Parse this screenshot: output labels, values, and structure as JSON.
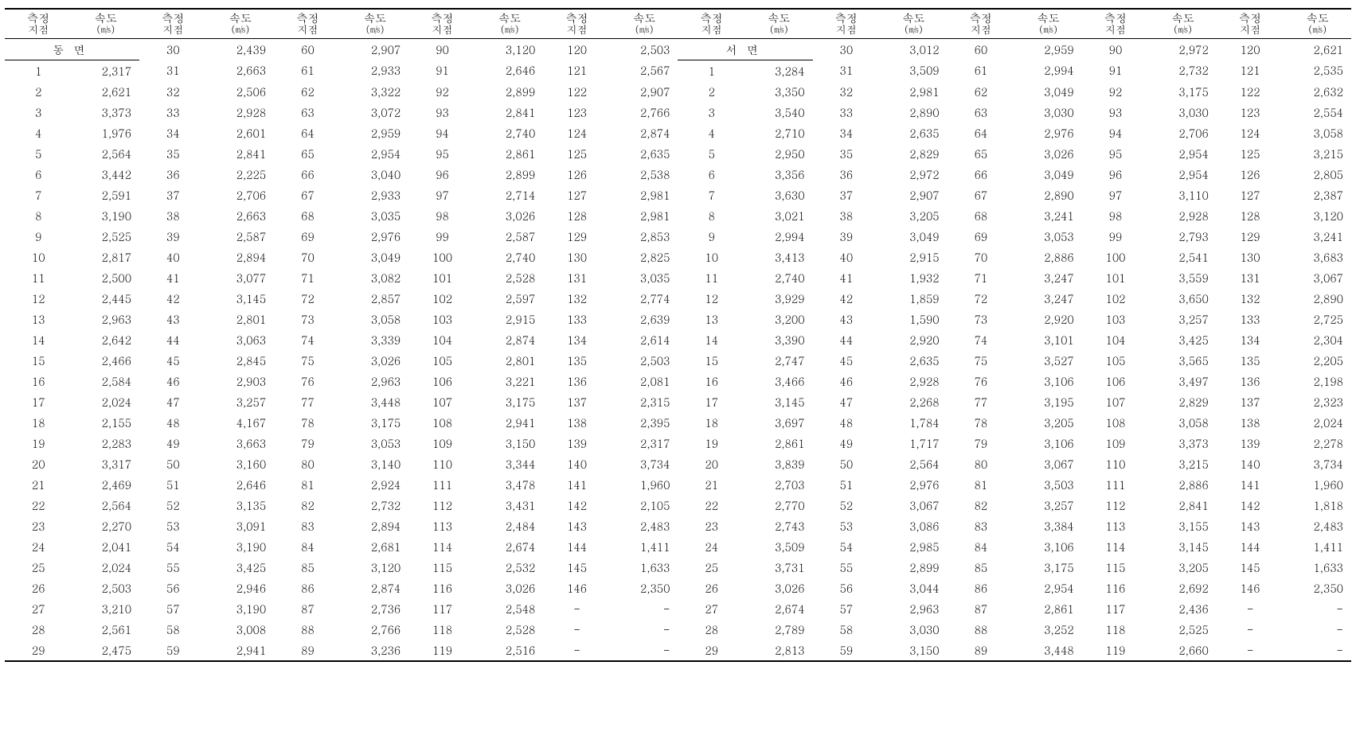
{
  "header": {
    "point_label": "측정\n지점",
    "speed_label": "속도",
    "speed_unit": "(㎧)"
  },
  "sections": {
    "east": {
      "label": "동    면"
    },
    "west": {
      "label": "서    면"
    }
  },
  "colors": {
    "rule": "#000000",
    "bg": "#ffffff",
    "text": "#000000"
  },
  "typography": {
    "font_family": "Batang / serif",
    "body_fontsize_pt": 11,
    "header_fontsize_pt": 11
  },
  "dash": "-",
  "east": {
    "c1": {
      "pts": [
        1,
        2,
        3,
        4,
        5,
        6,
        7,
        8,
        9,
        10,
        11,
        12,
        13,
        14,
        15,
        16,
        17,
        18,
        19,
        20,
        21,
        22,
        23,
        24,
        25,
        26,
        27,
        28,
        29
      ],
      "vals": [
        "2,317",
        "2,621",
        "3,373",
        "1,976",
        "2,564",
        "3,442",
        "2,591",
        "3,190",
        "2,525",
        "2,817",
        "2,500",
        "2,445",
        "2,963",
        "2,642",
        "2,466",
        "2,584",
        "2,024",
        "2,155",
        "2,283",
        "3,317",
        "2,469",
        "2,564",
        "2,270",
        "2,041",
        "2,024",
        "2,503",
        "3,210",
        "2,561",
        "2,475"
      ]
    },
    "c2": {
      "pts": [
        30,
        31,
        32,
        33,
        34,
        35,
        36,
        37,
        38,
        39,
        40,
        41,
        42,
        43,
        44,
        45,
        46,
        47,
        48,
        49,
        50,
        51,
        52,
        53,
        54,
        55,
        56,
        57,
        58,
        59
      ],
      "vals": [
        "2,439",
        "2,663",
        "2,506",
        "2,928",
        "2,601",
        "2,841",
        "2,225",
        "2,706",
        "2,663",
        "2,587",
        "2,894",
        "3,077",
        "3,145",
        "2,801",
        "3,063",
        "2,845",
        "2,903",
        "3,257",
        "4,167",
        "3,663",
        "3,160",
        "2,646",
        "3,135",
        "3,091",
        "3,190",
        "3,425",
        "2,946",
        "3,190",
        "3,008",
        "2,941"
      ]
    },
    "c3": {
      "pts": [
        60,
        61,
        62,
        63,
        64,
        65,
        66,
        67,
        68,
        69,
        70,
        71,
        72,
        73,
        74,
        75,
        76,
        77,
        78,
        79,
        80,
        81,
        82,
        83,
        84,
        85,
        86,
        87,
        88,
        89
      ],
      "vals": [
        "2,907",
        "2,933",
        "3,322",
        "3,072",
        "2,959",
        "2,954",
        "3,040",
        "2,933",
        "3,035",
        "2,976",
        "3,049",
        "3,082",
        "2,857",
        "3,058",
        "3,339",
        "3,026",
        "2,963",
        "3,448",
        "3,175",
        "3,053",
        "3,140",
        "2,924",
        "2,732",
        "2,894",
        "2,681",
        "3,120",
        "2,874",
        "2,736",
        "2,766",
        "3,236"
      ]
    },
    "c4": {
      "pts": [
        90,
        91,
        92,
        93,
        94,
        95,
        96,
        97,
        98,
        99,
        100,
        101,
        102,
        103,
        104,
        105,
        106,
        107,
        108,
        109,
        110,
        111,
        112,
        113,
        114,
        115,
        116,
        117,
        118,
        119
      ],
      "vals": [
        "3,120",
        "2,646",
        "2,899",
        "2,841",
        "2,740",
        "2,861",
        "2,899",
        "2,714",
        "3,026",
        "2,587",
        "2,740",
        "2,528",
        "2,597",
        "2,915",
        "2,874",
        "2,801",
        "3,221",
        "3,175",
        "2,941",
        "3,150",
        "3,344",
        "3,478",
        "3,431",
        "2,484",
        "2,674",
        "2,532",
        "3,026",
        "2,548",
        "2,528",
        "2,516"
      ]
    },
    "c5": {
      "pts": [
        120,
        121,
        122,
        123,
        124,
        125,
        126,
        127,
        128,
        129,
        130,
        131,
        132,
        133,
        134,
        135,
        136,
        137,
        138,
        139,
        140,
        141,
        142,
        143,
        144,
        145,
        146
      ],
      "vals": [
        "2,503",
        "2,567",
        "2,907",
        "2,766",
        "2,874",
        "2,635",
        "2,538",
        "2,981",
        "2,981",
        "2,853",
        "2,825",
        "3,035",
        "2,774",
        "2,639",
        "2,614",
        "2,503",
        "2,081",
        "2,315",
        "2,395",
        "2,317",
        "3,734",
        "1,960",
        "2,105",
        "2,483",
        "1,411",
        "1,633",
        "2,350"
      ]
    }
  },
  "west": {
    "c1": {
      "pts": [
        1,
        2,
        3,
        4,
        5,
        6,
        7,
        8,
        9,
        10,
        11,
        12,
        13,
        14,
        15,
        16,
        17,
        18,
        19,
        20,
        21,
        22,
        23,
        24,
        25,
        26,
        27,
        28,
        29
      ],
      "vals": [
        "3,284",
        "3,350",
        "3,540",
        "2,710",
        "2,950",
        "3,356",
        "3,630",
        "3,021",
        "2,994",
        "3,413",
        "2,740",
        "3,929",
        "3,200",
        "3,390",
        "2,747",
        "3,466",
        "3,145",
        "3,697",
        "2,861",
        "3,839",
        "2,703",
        "2,770",
        "2,743",
        "3,509",
        "3,731",
        "3,026",
        "2,674",
        "2,789",
        "2,813"
      ]
    },
    "c2": {
      "pts": [
        30,
        31,
        32,
        33,
        34,
        35,
        36,
        37,
        38,
        39,
        40,
        41,
        42,
        43,
        44,
        45,
        46,
        47,
        48,
        49,
        50,
        51,
        52,
        53,
        54,
        55,
        56,
        57,
        58,
        59
      ],
      "vals": [
        "3,012",
        "3,509",
        "2,981",
        "2,890",
        "2,635",
        "2,829",
        "2,972",
        "2,907",
        "3,205",
        "3,049",
        "2,915",
        "1,932",
        "1,859",
        "1,590",
        "2,920",
        "2,635",
        "2,928",
        "2,268",
        "1,784",
        "1,717",
        "2,564",
        "2,976",
        "3,067",
        "3,086",
        "2,985",
        "2,899",
        "3,044",
        "2,963",
        "3,030",
        "3,150"
      ]
    },
    "c3": {
      "pts": [
        60,
        61,
        62,
        63,
        64,
        65,
        66,
        67,
        68,
        69,
        70,
        71,
        72,
        73,
        74,
        75,
        76,
        77,
        78,
        79,
        80,
        81,
        82,
        83,
        84,
        85,
        86,
        87,
        88,
        89
      ],
      "vals": [
        "2,959",
        "2,994",
        "3,049",
        "3,030",
        "2,976",
        "3,026",
        "3,049",
        "2,890",
        "3,241",
        "3,053",
        "2,886",
        "3,247",
        "3,247",
        "2,920",
        "3,101",
        "3,527",
        "3,106",
        "3,195",
        "3,205",
        "3,106",
        "3,067",
        "3,503",
        "3,257",
        "3,384",
        "3,106",
        "3,175",
        "2,954",
        "2,861",
        "3,252",
        "3,448"
      ]
    },
    "c4": {
      "pts": [
        90,
        91,
        92,
        93,
        94,
        95,
        96,
        97,
        98,
        99,
        100,
        101,
        102,
        103,
        104,
        105,
        106,
        107,
        108,
        109,
        110,
        111,
        112,
        113,
        114,
        115,
        116,
        117,
        118,
        119
      ],
      "vals": [
        "2,972",
        "2,732",
        "3,175",
        "3,030",
        "2,706",
        "2,954",
        "2,954",
        "3,110",
        "2,928",
        "2,793",
        "2,541",
        "3,559",
        "3,650",
        "3,257",
        "3,425",
        "3,565",
        "3,497",
        "2,829",
        "3,058",
        "3,373",
        "3,215",
        "2,886",
        "2,841",
        "3,155",
        "3,145",
        "3,205",
        "2,692",
        "2,436",
        "2,525",
        "2,660"
      ]
    },
    "c5": {
      "pts": [
        120,
        121,
        122,
        123,
        124,
        125,
        126,
        127,
        128,
        129,
        130,
        131,
        132,
        133,
        134,
        135,
        136,
        137,
        138,
        139,
        140,
        141,
        142,
        143,
        144,
        145,
        146
      ],
      "vals": [
        "2,621",
        "2,535",
        "2,632",
        "2,554",
        "3,058",
        "3,215",
        "2,805",
        "2,387",
        "3,120",
        "3,241",
        "3,683",
        "3,067",
        "2,890",
        "2,725",
        "2,304",
        "2,205",
        "2,198",
        "2,323",
        "2,024",
        "2,278",
        "3,734",
        "1,960",
        "1,818",
        "2,483",
        "1,411",
        "1,633",
        "2,350"
      ]
    }
  }
}
